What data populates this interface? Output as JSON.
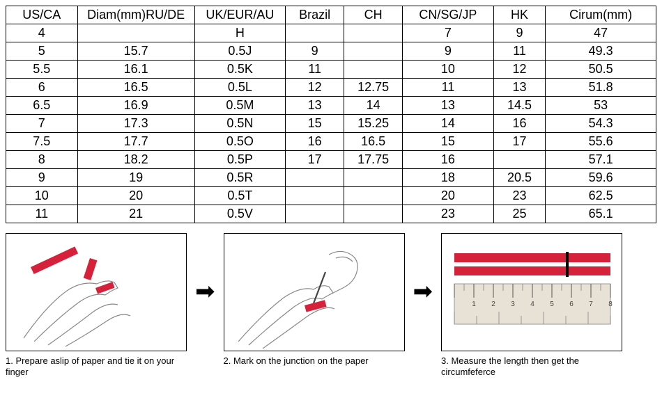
{
  "table": {
    "columns": [
      "US/CA",
      "Diam(mm)RU/DE",
      "UK/EUR/AU",
      "Brazil",
      "CH",
      "CN/SG/JP",
      "HK",
      "Cirum(mm)"
    ],
    "col_widths": [
      "11%",
      "18%",
      "14%",
      "9%",
      "9%",
      "14%",
      "8%",
      "17%"
    ],
    "rows": [
      [
        "4",
        "",
        "H",
        "",
        "",
        "7",
        "9",
        "47"
      ],
      [
        "5",
        "15.7",
        "0.5J",
        "9",
        "",
        "9",
        "11",
        "49.3"
      ],
      [
        "5.5",
        "16.1",
        "0.5K",
        "11",
        "",
        "10",
        "12",
        "50.5"
      ],
      [
        "6",
        "16.5",
        "0.5L",
        "12",
        "12.75",
        "11",
        "13",
        "51.8"
      ],
      [
        "6.5",
        "16.9",
        "0.5M",
        "13",
        "14",
        "13",
        "14.5",
        "53"
      ],
      [
        "7",
        "17.3",
        "0.5N",
        "15",
        "15.25",
        "14",
        "16",
        "54.3"
      ],
      [
        "7.5",
        "17.7",
        "0.5O",
        "16",
        "16.5",
        "15",
        "17",
        "55.6"
      ],
      [
        "8",
        "18.2",
        "0.5P",
        "17",
        "17.75",
        "16",
        "",
        "57.1"
      ],
      [
        "9",
        "19",
        "0.5R",
        "",
        "",
        "18",
        "20.5",
        "59.6"
      ],
      [
        "10",
        "20",
        "0.5T",
        "",
        "",
        "20",
        "23",
        "62.5"
      ],
      [
        "11",
        "21",
        "0.5V",
        "",
        "",
        "23",
        "25",
        "65.1"
      ]
    ],
    "border_color": "#000000",
    "font_size": 18
  },
  "steps": {
    "accent_color": "#d6213a",
    "outline_color": "#888888",
    "ruler_bg": "#e8e1d5",
    "items": [
      {
        "caption": "1. Prepare aslip of paper and tie it on your finger"
      },
      {
        "caption": "2. Mark on the junction on the paper"
      },
      {
        "caption": "3. Measure the length then get the circumfeferce"
      }
    ]
  },
  "arrow_glyph": "➡"
}
